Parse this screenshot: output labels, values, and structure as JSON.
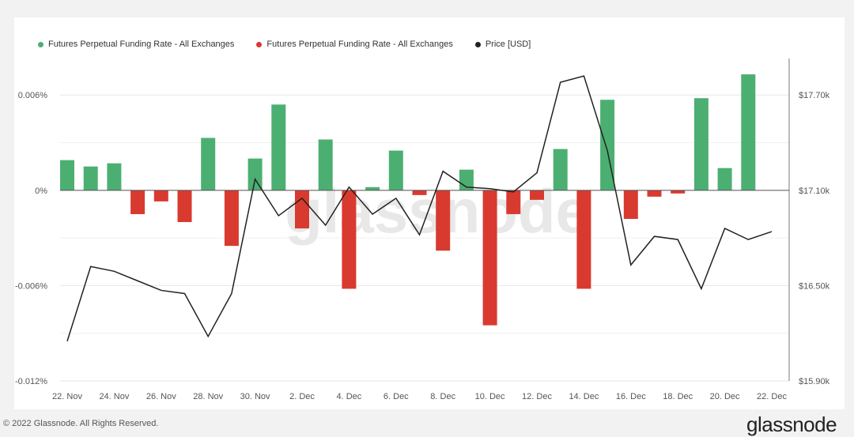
{
  "legend": [
    {
      "label": "Futures Perpetual Funding Rate - All Exchanges",
      "color": "#4caf72"
    },
    {
      "label": "Futures Perpetual Funding Rate - All Exchanges",
      "color": "#d93a2f"
    },
    {
      "label": "Price [USD]",
      "color": "#222222"
    }
  ],
  "watermark": "glassnode",
  "footer": {
    "copyright": "© 2022 Glassnode. All Rights Reserved.",
    "brand": "glassnode"
  },
  "chart_data": {
    "type": "bar",
    "x_ticks": [
      "22. Nov",
      "24. Nov",
      "26. Nov",
      "28. Nov",
      "30. Nov",
      "2. Dec",
      "4. Dec",
      "6. Dec",
      "8. Dec",
      "10. Dec",
      "12. Dec",
      "14. Dec",
      "16. Dec",
      "18. Dec",
      "20. Dec",
      "22. Dec"
    ],
    "left_axis": {
      "ticks": [
        "0.006%",
        "0%",
        "-0.006%",
        "-0.012%"
      ],
      "tick_values": [
        0.006,
        0,
        -0.006,
        -0.012
      ],
      "ylim": [
        -0.012,
        0.0083
      ]
    },
    "right_axis": {
      "ticks": [
        "$17.70k",
        "$17.10k",
        "$16.50k",
        "$15.90k"
      ],
      "tick_values": [
        17700,
        17100,
        16500,
        15900
      ]
    },
    "series": [
      {
        "name": "Futures Perpetual Funding Rate - All Exchanges",
        "type": "bar",
        "positive_color": "#4caf72",
        "negative_color": "#d93a2f",
        "x": [
          "22. Nov",
          "23. Nov",
          "24. Nov",
          "25. Nov",
          "26. Nov",
          "27. Nov",
          "28. Nov",
          "29. Nov",
          "30. Nov",
          "1. Dec",
          "2. Dec",
          "3. Dec",
          "4. Dec",
          "5. Dec",
          "6. Dec",
          "7. Dec",
          "8. Dec",
          "9. Dec",
          "10. Dec",
          "11. Dec",
          "12. Dec",
          "13. Dec",
          "14. Dec",
          "15. Dec",
          "16. Dec",
          "17. Dec",
          "18. Dec",
          "19. Dec",
          "20. Dec",
          "21. Dec"
        ],
        "values": [
          0.0019,
          0.0015,
          0.0017,
          -0.0015,
          -0.0007,
          -0.002,
          0.0033,
          -0.0035,
          0.002,
          0.0054,
          -0.0024,
          0.0032,
          -0.0062,
          0.0002,
          0.0025,
          -0.0003,
          -0.0038,
          0.0013,
          -0.0085,
          -0.0015,
          -0.0006,
          0.0026,
          -0.0062,
          0.0057,
          -0.0018,
          -0.0004,
          -0.0002,
          0.0058,
          0.0014,
          0.0073
        ]
      },
      {
        "name": "Price [USD]",
        "type": "line",
        "color": "#222222",
        "x": [
          "22. Nov",
          "23. Nov",
          "24. Nov",
          "25. Nov",
          "26. Nov",
          "27. Nov",
          "28. Nov",
          "29. Nov",
          "30. Nov",
          "1. Dec",
          "2. Dec",
          "3. Dec",
          "4. Dec",
          "5. Dec",
          "6. Dec",
          "7. Dec",
          "8. Dec",
          "9. Dec",
          "10. Dec",
          "11. Dec",
          "12. Dec",
          "13. Dec",
          "14. Dec",
          "15. Dec",
          "16. Dec",
          "17. Dec",
          "18. Dec",
          "19. Dec",
          "20. Dec",
          "21. Dec",
          "22. Dec"
        ],
        "values": [
          16150,
          16620,
          16590,
          16530,
          16470,
          16450,
          16180,
          16450,
          17170,
          16940,
          17050,
          16880,
          17120,
          16950,
          17050,
          16820,
          17220,
          17120,
          17110,
          17090,
          17210,
          17780,
          17820,
          17350,
          16630,
          16810,
          16790,
          16480,
          16860,
          16790,
          16840
        ]
      }
    ]
  }
}
